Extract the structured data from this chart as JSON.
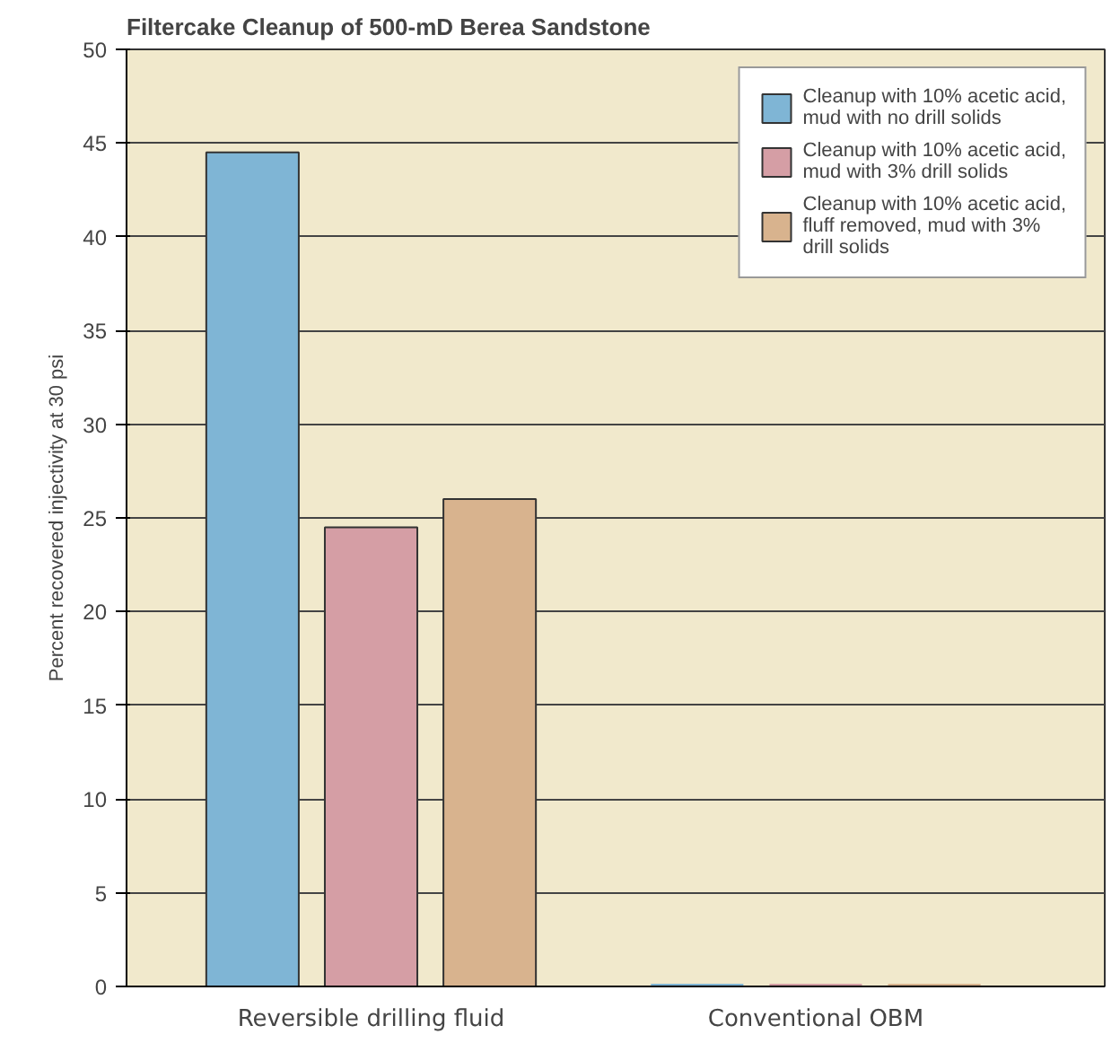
{
  "chart_data": {
    "type": "bar",
    "title": "Filtercake Cleanup of 500-mD Berea Sandstone",
    "ylabel": "Percent recovered injectivity at 30 psi",
    "categories": [
      "Reversible drilling fluid",
      "Conventional OBM"
    ],
    "series": [
      {
        "name": "Cleanup with 10% acetic acid, mud with no drill solids",
        "color": "#7fb5d5",
        "values": [
          44.5,
          0
        ]
      },
      {
        "name": "Cleanup with 10% acetic acid, mud with 3% drill solids",
        "color": "#d59ea5",
        "values": [
          24.5,
          0
        ]
      },
      {
        "name": "Cleanup with 10% acetic acid, fluff removed, mud with 3% drill solids",
        "color": "#d8b38e",
        "values": [
          26,
          0
        ]
      }
    ],
    "ylim": [
      0,
      50
    ],
    "yticks": [
      0,
      5,
      10,
      15,
      20,
      25,
      30,
      35,
      40,
      45,
      50
    ],
    "grid": "y",
    "legend": "top right"
  }
}
